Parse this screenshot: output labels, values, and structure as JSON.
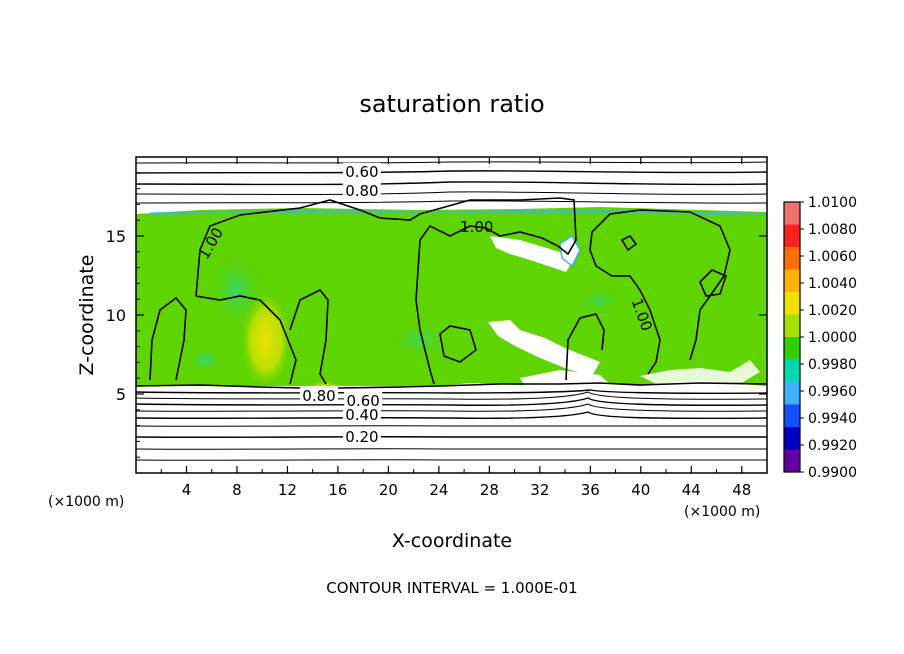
{
  "chart_data": {
    "type": "heatmap",
    "title": "saturation ratio",
    "xlabel": "X-coordinate",
    "ylabel": "Z-coordinate",
    "x_unit_left": "(×1000 m)",
    "x_unit_right": "(×1000 m)",
    "xlim": [
      0,
      50
    ],
    "ylim": [
      0,
      20
    ],
    "x_ticks": [
      "4",
      "8",
      "12",
      "16",
      "20",
      "24",
      "28",
      "32",
      "36",
      "40",
      "44",
      "48"
    ],
    "y_ticks": [
      "5",
      "10",
      "15"
    ],
    "x_tick_values": [
      4,
      8,
      12,
      16,
      20,
      24,
      28,
      32,
      36,
      40,
      44,
      48
    ],
    "y_tick_values": [
      5,
      10,
      15
    ],
    "colorbar": {
      "range": [
        0.99,
        1.01
      ],
      "labels": [
        "1.0100",
        "1.0080",
        "1.0060",
        "1.0040",
        "1.0020",
        "1.0000",
        "0.9980",
        "0.9960",
        "0.9940",
        "0.9920",
        "0.9900"
      ],
      "colors": [
        "#f07070",
        "#ff2020",
        "#ff7000",
        "#ffb000",
        "#f0e000",
        "#a8e000",
        "#30d000",
        "#00d8b0",
        "#40b0ff",
        "#1050ff",
        "#0000c0",
        "#6000a0"
      ]
    },
    "contour_labels": [
      {
        "text": "0.60",
        "x": 17.9,
        "z": 19.0
      },
      {
        "text": "0.80",
        "x": 17.9,
        "z": 17.8
      },
      {
        "text": "1.00",
        "x": 6.0,
        "z": 14.5
      },
      {
        "text": "1.00",
        "x": 27.0,
        "z": 15.5
      },
      {
        "text": "1.00",
        "x": 40.0,
        "z": 10.0
      },
      {
        "text": "0.80",
        "x": 14.5,
        "z": 4.8
      },
      {
        "text": "0.60",
        "x": 18.0,
        "z": 4.5
      },
      {
        "text": "0.40",
        "x": 17.9,
        "z": 3.6
      },
      {
        "text": "0.20",
        "x": 17.9,
        "z": 2.2
      }
    ],
    "contour_interval_text": "CONTOUR INTERVAL = 1.000E-01",
    "grid": false,
    "legend": "colorbar-right"
  }
}
